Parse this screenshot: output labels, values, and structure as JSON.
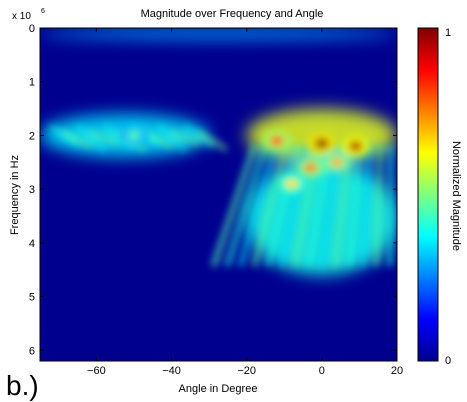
{
  "chart_data": {
    "type": "heatmap",
    "title": "Magnitude over Frequency and Angle",
    "xlabel": "Angle in Degree",
    "ylabel": "Frequency in Hz",
    "y_multiplier_label": "x 10",
    "y_multiplier_exponent": "6",
    "xlim": [
      -75,
      20
    ],
    "ylim": [
      0,
      6.2
    ],
    "y_axis_reversed": true,
    "xticks": [
      -60,
      -40,
      -20,
      0,
      20
    ],
    "yticks": [
      0,
      1,
      2,
      3,
      4,
      5,
      6
    ],
    "colormap": "jet",
    "colorbar": {
      "label": "Normalized Magnitude",
      "range": [
        0,
        1
      ],
      "ticks": [
        0,
        1
      ],
      "position": "right"
    },
    "grid": false,
    "regions": [
      {
        "angle": [
          -75,
          -30
        ],
        "frequency": [
          1.6,
          2.4
        ],
        "magnitude": 0.35
      },
      {
        "angle": [
          -20,
          20
        ],
        "frequency": [
          1.5,
          2.5
        ],
        "magnitude": 0.6
      },
      {
        "angle": [
          -20,
          20
        ],
        "frequency": [
          2.5,
          4.6
        ],
        "magnitude": 0.4
      },
      {
        "angle": [
          -75,
          20
        ],
        "frequency": [
          0,
          0.2
        ],
        "magnitude": 0.3
      }
    ],
    "peaks": [
      {
        "angle": 0,
        "frequency": 2.15,
        "magnitude": 1.0
      },
      {
        "angle": 9,
        "frequency": 2.2,
        "magnitude": 0.95
      },
      {
        "angle": -12,
        "frequency": 2.1,
        "magnitude": 0.8
      },
      {
        "angle": -3,
        "frequency": 2.6,
        "magnitude": 0.75
      },
      {
        "angle": 4,
        "frequency": 2.5,
        "magnitude": 0.7
      },
      {
        "angle": -8,
        "frequency": 2.9,
        "magnitude": 0.65
      },
      {
        "angle": -50,
        "frequency": 2.0,
        "magnitude": 0.45
      }
    ]
  },
  "panel_label": "b.)"
}
